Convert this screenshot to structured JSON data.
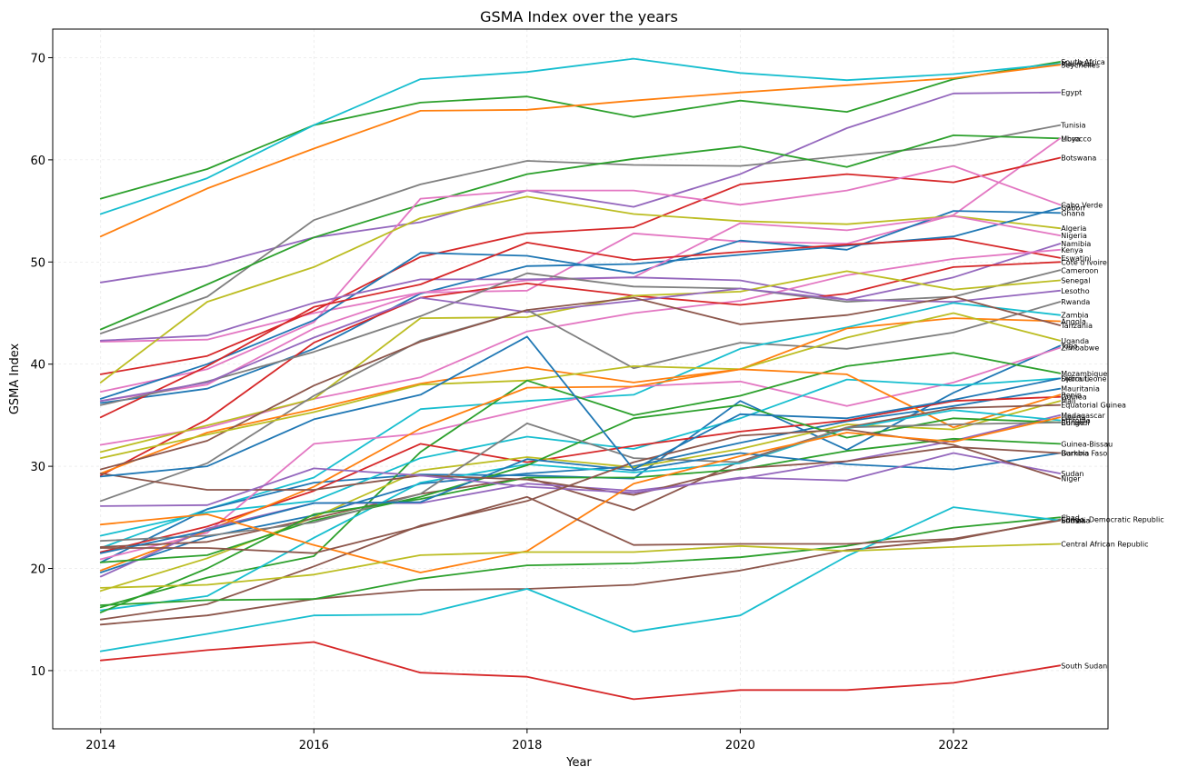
{
  "chart_data": {
    "type": "line",
    "title": "GSMA Index over the years",
    "xlabel": "Year",
    "ylabel": "GSMA Index",
    "x": [
      2014,
      2015,
      2016,
      2017,
      2018,
      2019,
      2020,
      2021,
      2022,
      2023
    ],
    "xlim": [
      2013.55,
      2023.45
    ],
    "ylim": [
      4.3,
      72.8
    ],
    "xticks": [
      2014,
      2016,
      2018,
      2020,
      2022
    ],
    "yticks": [
      10,
      20,
      30,
      40,
      50,
      60,
      70
    ],
    "grid": true,
    "series": [
      {
        "name": "South Africa",
        "color": "#2ca02c",
        "values": [
          56.2,
          59.1,
          63.4,
          65.6,
          66.2,
          64.2,
          65.8,
          64.7,
          67.9,
          69.6
        ]
      },
      {
        "name": "Mauritius",
        "color": "#17becf",
        "values": [
          54.7,
          58.2,
          63.4,
          67.9,
          68.6,
          69.9,
          68.5,
          67.8,
          68.4,
          69.4
        ]
      },
      {
        "name": "Seychelles",
        "color": "#ff7f0e",
        "values": [
          52.5,
          57.2,
          61.1,
          64.8,
          64.9,
          65.8,
          66.6,
          67.3,
          68.0,
          69.3
        ]
      },
      {
        "name": "Egypt",
        "color": "#9467bd",
        "values": [
          48.0,
          49.6,
          52.4,
          53.9,
          57.0,
          55.4,
          58.6,
          63.1,
          66.5,
          66.6
        ]
      },
      {
        "name": "Tunisia",
        "color": "#7f7f7f",
        "values": [
          43.0,
          46.6,
          54.1,
          57.6,
          59.9,
          59.5,
          59.4,
          60.4,
          61.4,
          63.4
        ]
      },
      {
        "name": "Libya",
        "color": "#2ca02c",
        "values": [
          43.4,
          47.8,
          52.4,
          55.6,
          58.6,
          60.1,
          61.3,
          59.3,
          62.4,
          62.1
        ]
      },
      {
        "name": "Morocco",
        "color": "#e377c2",
        "values": [
          42.2,
          42.4,
          45.0,
          47.0,
          47.2,
          52.8,
          52.0,
          51.8,
          54.6,
          62.1
        ]
      },
      {
        "name": "Botswana",
        "color": "#d62728",
        "values": [
          39.0,
          40.8,
          45.2,
          50.5,
          52.8,
          53.4,
          57.6,
          58.6,
          57.8,
          60.2
        ]
      },
      {
        "name": "Cabo Verde",
        "color": "#e377c2",
        "values": [
          37.3,
          39.5,
          44.1,
          56.2,
          57.0,
          57.0,
          55.6,
          57.0,
          59.4,
          55.6
        ]
      },
      {
        "name": "Ghana",
        "color": "#1f77b4",
        "values": [
          36.6,
          40.0,
          44.3,
          50.9,
          50.6,
          48.9,
          52.1,
          51.2,
          55.0,
          54.8
        ]
      },
      {
        "name": "Algeria",
        "color": "#bcbd22",
        "values": [
          38.2,
          46.1,
          49.5,
          54.3,
          56.4,
          54.7,
          54.0,
          53.7,
          54.5,
          53.3
        ]
      },
      {
        "name": "Gabon",
        "color": "#1f77b4",
        "values": [
          36.2,
          37.6,
          41.5,
          46.9,
          49.6,
          49.8,
          50.7,
          51.6,
          52.5,
          55.3
        ]
      },
      {
        "name": "Nigeria",
        "color": "#e377c2",
        "values": [
          36.4,
          38.0,
          43.5,
          47.0,
          48.2,
          48.5,
          53.8,
          53.1,
          54.5,
          52.6
        ]
      },
      {
        "name": "Namibia",
        "color": "#9467bd",
        "values": [
          42.3,
          42.8,
          46.0,
          48.3,
          48.3,
          48.5,
          48.2,
          46.3,
          48.5,
          51.8
        ]
      },
      {
        "name": "Eswatini",
        "color": "#d62728",
        "values": [
          34.8,
          39.8,
          45.6,
          47.8,
          51.9,
          50.2,
          51.0,
          51.7,
          52.3,
          50.4
        ]
      },
      {
        "name": "Kenya",
        "color": "#e377c2",
        "values": [
          32.1,
          33.8,
          36.6,
          38.7,
          43.2,
          45.0,
          46.2,
          48.7,
          50.3,
          51.2
        ]
      },
      {
        "name": "Cote d'Ivoire",
        "color": "#d62728",
        "values": [
          29.1,
          34.6,
          42.1,
          46.5,
          47.9,
          46.7,
          45.8,
          46.9,
          49.5,
          50.0
        ]
      },
      {
        "name": "Cameroon",
        "color": "#7f7f7f",
        "values": [
          36.0,
          38.3,
          41.2,
          44.7,
          48.9,
          47.6,
          47.4,
          46.1,
          46.6,
          49.2
        ]
      },
      {
        "name": "Senegal",
        "color": "#bcbd22",
        "values": [
          31.4,
          34.0,
          36.6,
          44.5,
          44.6,
          46.7,
          47.1,
          49.1,
          47.3,
          48.2
        ]
      },
      {
        "name": "Lesotho",
        "color": "#9467bd",
        "values": [
          36.4,
          38.2,
          42.6,
          46.5,
          45.1,
          46.2,
          47.4,
          46.3,
          46.1,
          47.2
        ]
      },
      {
        "name": "Rwanda",
        "color": "#7f7f7f",
        "values": [
          26.6,
          30.3,
          36.9,
          42.3,
          45.3,
          39.6,
          42.1,
          41.5,
          43.1,
          46.1
        ]
      },
      {
        "name": "Zambia",
        "color": "#17becf",
        "values": [
          22.0,
          25.8,
          28.9,
          35.6,
          36.4,
          37.0,
          41.5,
          43.6,
          46.0,
          44.8
        ]
      },
      {
        "name": "Angola",
        "color": "#ff7f0e",
        "values": [
          29.3,
          33.3,
          35.6,
          38.1,
          39.7,
          38.2,
          39.5,
          43.5,
          44.5,
          44.2
        ]
      },
      {
        "name": "Tanzania",
        "color": "#8c564b",
        "values": [
          29.7,
          32.5,
          37.9,
          42.2,
          45.3,
          46.5,
          43.9,
          44.8,
          46.6,
          43.8
        ]
      },
      {
        "name": "Uganda",
        "color": "#bcbd22",
        "values": [
          30.8,
          33.1,
          35.3,
          38.0,
          38.4,
          39.8,
          39.5,
          42.6,
          45.0,
          42.3
        ]
      },
      {
        "name": "Togo",
        "color": "#1f77b4",
        "values": [
          20.6,
          25.8,
          28.4,
          29.2,
          29.1,
          28.8,
          36.4,
          31.6,
          37.2,
          41.8
        ]
      },
      {
        "name": "Zimbabwe",
        "color": "#e377c2",
        "values": [
          20.9,
          23.5,
          32.2,
          33.2,
          35.6,
          37.8,
          38.3,
          35.9,
          38.2,
          41.6
        ]
      },
      {
        "name": "Mozambique",
        "color": "#2ca02c",
        "values": [
          16.2,
          19.1,
          21.2,
          31.4,
          38.4,
          35.0,
          36.9,
          39.8,
          41.1,
          39.1
        ]
      },
      {
        "name": "Sierra Leone",
        "color": "#17becf",
        "values": [
          23.2,
          25.5,
          26.6,
          30.8,
          32.9,
          31.7,
          34.7,
          38.5,
          37.9,
          38.6
        ]
      },
      {
        "name": "Mauritania",
        "color": "#1f77b4",
        "values": [
          19.6,
          23.1,
          25.2,
          28.3,
          29.3,
          30.0,
          32.3,
          34.4,
          35.9,
          37.6
        ]
      },
      {
        "name": "Guinea",
        "color": "#d62728",
        "values": [
          21.6,
          24.1,
          27.6,
          32.2,
          30.4,
          32.0,
          33.4,
          34.5,
          36.4,
          36.8
        ]
      },
      {
        "name": "Benin",
        "color": "#ff7f0e",
        "values": [
          19.8,
          23.7,
          28.0,
          33.7,
          37.7,
          37.8,
          39.5,
          39.0,
          33.8,
          37.0
        ]
      },
      {
        "name": "Mali",
        "color": "#bcbd22",
        "values": [
          17.8,
          21.0,
          25.0,
          29.6,
          30.9,
          29.9,
          31.7,
          34.1,
          33.6,
          36.4
        ]
      },
      {
        "name": "Equatorial Guinea",
        "color": "#8c564b",
        "values": [
          22.1,
          22.6,
          24.9,
          27.3,
          28.9,
          25.7,
          30.5,
          33.8,
          35.7,
          36.0
        ]
      },
      {
        "name": "Madagascar",
        "color": "#9467bd",
        "values": [
          19.2,
          23.9,
          26.4,
          26.4,
          28.3,
          27.6,
          28.8,
          30.5,
          32.5,
          35.0
        ]
      },
      {
        "name": "Ethiopia",
        "color": "#17becf",
        "values": [
          15.9,
          17.3,
          23.0,
          28.4,
          30.2,
          29.4,
          30.3,
          33.7,
          35.5,
          34.5
        ]
      },
      {
        "name": "Burundi",
        "color": "#2ca02c",
        "values": [
          20.6,
          21.3,
          24.7,
          27.0,
          30.1,
          34.7,
          36.0,
          32.8,
          34.7,
          34.3
        ]
      },
      {
        "name": "Congo",
        "color": "#7f7f7f",
        "values": [
          22.7,
          23.2,
          24.5,
          27.3,
          34.2,
          30.8,
          30.4,
          33.8,
          34.1,
          34.3
        ]
      },
      {
        "name": "Guinea-Bassau",
        "color": "#2ca02c",
        "values": [
          15.7,
          20.0,
          25.3,
          26.8,
          28.9,
          28.9,
          29.7,
          31.5,
          32.7,
          32.2
        ]
      },
      {
        "name": "Gambia",
        "color": "#1f77b4",
        "values": [
          21.5,
          23.7,
          26.4,
          26.5,
          30.7,
          29.6,
          31.3,
          30.2,
          29.7,
          31.3
        ]
      },
      {
        "name": "Burkina Faso",
        "color": "#8c564b",
        "values": [
          29.3,
          27.7,
          27.7,
          29.1,
          28.7,
          27.2,
          29.8,
          30.5,
          31.9,
          31.3
        ]
      },
      {
        "name": "Sudan",
        "color": "#9467bd",
        "values": [
          26.1,
          26.2,
          29.8,
          29.1,
          28.0,
          27.4,
          28.9,
          28.6,
          31.3,
          29.3
        ]
      },
      {
        "name": "Niger",
        "color": "#8c564b",
        "values": [
          15.0,
          16.5,
          20.2,
          24.2,
          26.6,
          30.4,
          33.0,
          33.6,
          32.1,
          28.8
        ]
      },
      {
        "name": "Democratic Republic",
        "color": "#8c564b",
        "values": [
          14.5,
          15.4,
          17.0,
          17.9,
          18.0,
          18.4,
          19.8,
          21.8,
          22.8,
          24.8
        ]
      },
      {
        "name": "Chad",
        "color": "#2ca02c",
        "values": [
          16.4,
          16.9,
          17.0,
          19.0,
          20.3,
          20.5,
          21.1,
          22.2,
          24.0,
          25.0
        ]
      },
      {
        "name": "Somalia",
        "color": "#17becf",
        "values": [
          11.9,
          13.6,
          15.4,
          15.5,
          18.0,
          13.8,
          15.4,
          21.2,
          26.0,
          24.7
        ]
      },
      {
        "name": "Liberia",
        "color": "#ff7f0e",
        "values": [
          24.3,
          25.3,
          22.3,
          19.6,
          21.7,
          28.3,
          31.0,
          33.3,
          32.4,
          34.8
        ]
      },
      {
        "name": "Eritrea",
        "color": "#8c564b",
        "values": [
          22.0,
          22.0,
          21.5,
          24.1,
          27.0,
          22.3,
          22.4,
          22.4,
          22.9,
          24.7
        ]
      },
      {
        "name": "Central African Republic",
        "color": "#bcbd22",
        "values": [
          18.1,
          18.4,
          19.4,
          21.3,
          21.6,
          21.6,
          22.2,
          21.7,
          22.1,
          22.4
        ]
      },
      {
        "name": "Djibouti",
        "color": "#1f77b4",
        "values": [
          29.0,
          30.0,
          34.6,
          37.0,
          42.7,
          29.7,
          35.1,
          34.7,
          36.5,
          38.6
        ]
      },
      {
        "name": "South Sudan",
        "color": "#d62728",
        "values": [
          11.0,
          12.0,
          12.8,
          9.8,
          9.4,
          7.2,
          8.1,
          8.1,
          8.8,
          10.5
        ]
      }
    ],
    "end_labels": [
      "South Africa",
      "Mauritius",
      "Seychelles",
      "Egypt",
      "Tunisia",
      "Libya",
      "Morocco",
      "Botswana",
      "Cabo Verde",
      "Ghana",
      "Algeria",
      "Gabon",
      "Nigeria",
      "Namibia",
      "Eswatini",
      "Kenya",
      "Cote d'Ivoire",
      "Cameroon",
      "Senegal",
      "Lesotho",
      "Rwanda",
      "Zambia",
      "Angola",
      "Tanzania",
      "Uganda",
      "Togo",
      "Zimbabwe",
      "Mozambique",
      "Sierra Leone",
      "Mauritania",
      "Guinea",
      "Benin",
      "Mali",
      "Equatorial Guinea",
      "Madagascar",
      "Ethiopia",
      "Burundi",
      "Congo",
      "Guinea-Bissau",
      "Gambia",
      "Burkina Faso",
      "Sudan",
      "Niger",
      "Congo, Democratic Republic",
      "Chad",
      "Somalia",
      "Liberia",
      "Eritrea",
      "Central African Republic",
      "Djibouti",
      "South Sudan"
    ]
  }
}
